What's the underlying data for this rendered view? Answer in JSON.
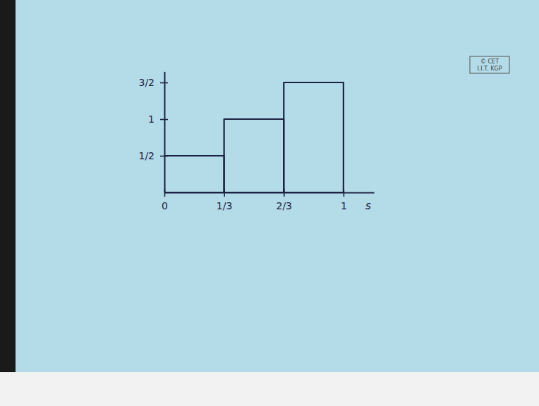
{
  "chart_data": {
    "type": "histogram",
    "bins": [
      0,
      0.3333,
      0.6667,
      1
    ],
    "values": [
      0.5,
      1,
      1.5
    ],
    "x_label": "s",
    "xlim": [
      0,
      1.17
    ],
    "ylim": [
      0,
      1.65
    ],
    "xticks": [
      0,
      {
        "value": 0.3333,
        "label": "1/3"
      },
      {
        "value": 0.6667,
        "label": "2/3"
      },
      1
    ],
    "yticks": [
      {
        "value": 0.5,
        "label": "1/2"
      },
      1,
      {
        "value": 1.5,
        "label": "3/2"
      }
    ],
    "color": "#1c2340",
    "grid": false,
    "annotations": [
      "© CET",
      "I.I.T. KGP"
    ]
  }
}
